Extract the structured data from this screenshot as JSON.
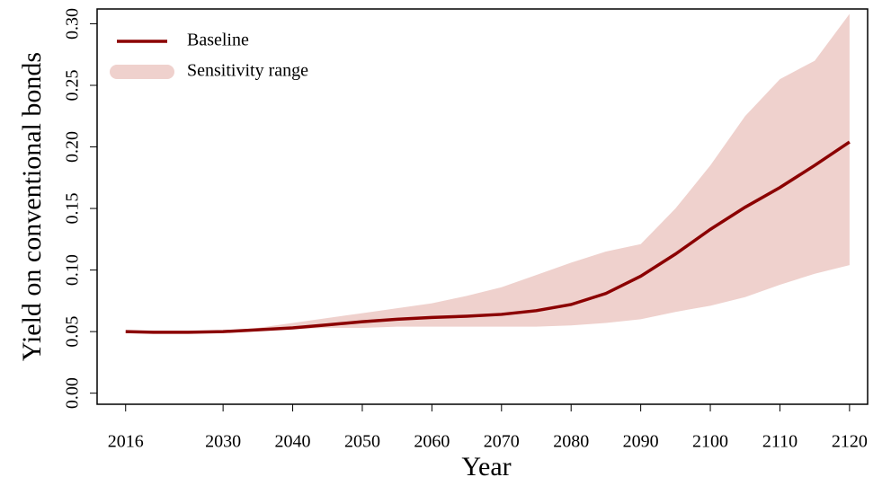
{
  "chart_data": {
    "type": "line",
    "xlabel": "Year",
    "ylabel": "Yield on conventional bonds",
    "x": [
      2016,
      2020,
      2025,
      2030,
      2035,
      2040,
      2045,
      2050,
      2055,
      2060,
      2065,
      2070,
      2075,
      2080,
      2085,
      2090,
      2095,
      2100,
      2105,
      2110,
      2115,
      2120
    ],
    "series": [
      {
        "name": "Baseline",
        "color": "#8b0000",
        "values": [
          0.05,
          0.0495,
          0.0495,
          0.05,
          0.0515,
          0.053,
          0.0555,
          0.058,
          0.06,
          0.0615,
          0.0625,
          0.064,
          0.067,
          0.072,
          0.081,
          0.095,
          0.113,
          0.133,
          0.151,
          0.167,
          0.185,
          0.204
        ]
      },
      {
        "name": "Sensitivity range",
        "color": "#efd1cd",
        "lower": [
          0.05,
          0.0495,
          0.0495,
          0.05,
          0.051,
          0.052,
          0.053,
          0.053,
          0.054,
          0.054,
          0.054,
          0.054,
          0.054,
          0.055,
          0.057,
          0.06,
          0.066,
          0.071,
          0.078,
          0.088,
          0.097,
          0.104
        ],
        "upper": [
          0.05,
          0.0495,
          0.0495,
          0.0505,
          0.053,
          0.057,
          0.061,
          0.065,
          0.069,
          0.073,
          0.079,
          0.086,
          0.096,
          0.106,
          0.115,
          0.121,
          0.15,
          0.185,
          0.225,
          0.255,
          0.27,
          0.308
        ]
      }
    ],
    "xlim": [
      2011.9,
      2122.6
    ],
    "ylim": [
      -0.009,
      0.312
    ],
    "xticks": [
      2016,
      2030,
      2040,
      2050,
      2060,
      2070,
      2080,
      2090,
      2100,
      2110,
      2120
    ],
    "yticks": [
      {
        "value": 0,
        "label": "0.00"
      },
      0.05,
      {
        "value": 0.1,
        "label": "0.10"
      },
      0.15,
      {
        "value": 0.2,
        "label": "0.20"
      },
      0.25,
      {
        "value": 0.3,
        "label": "0.30"
      }
    ],
    "legend": "top-left"
  }
}
